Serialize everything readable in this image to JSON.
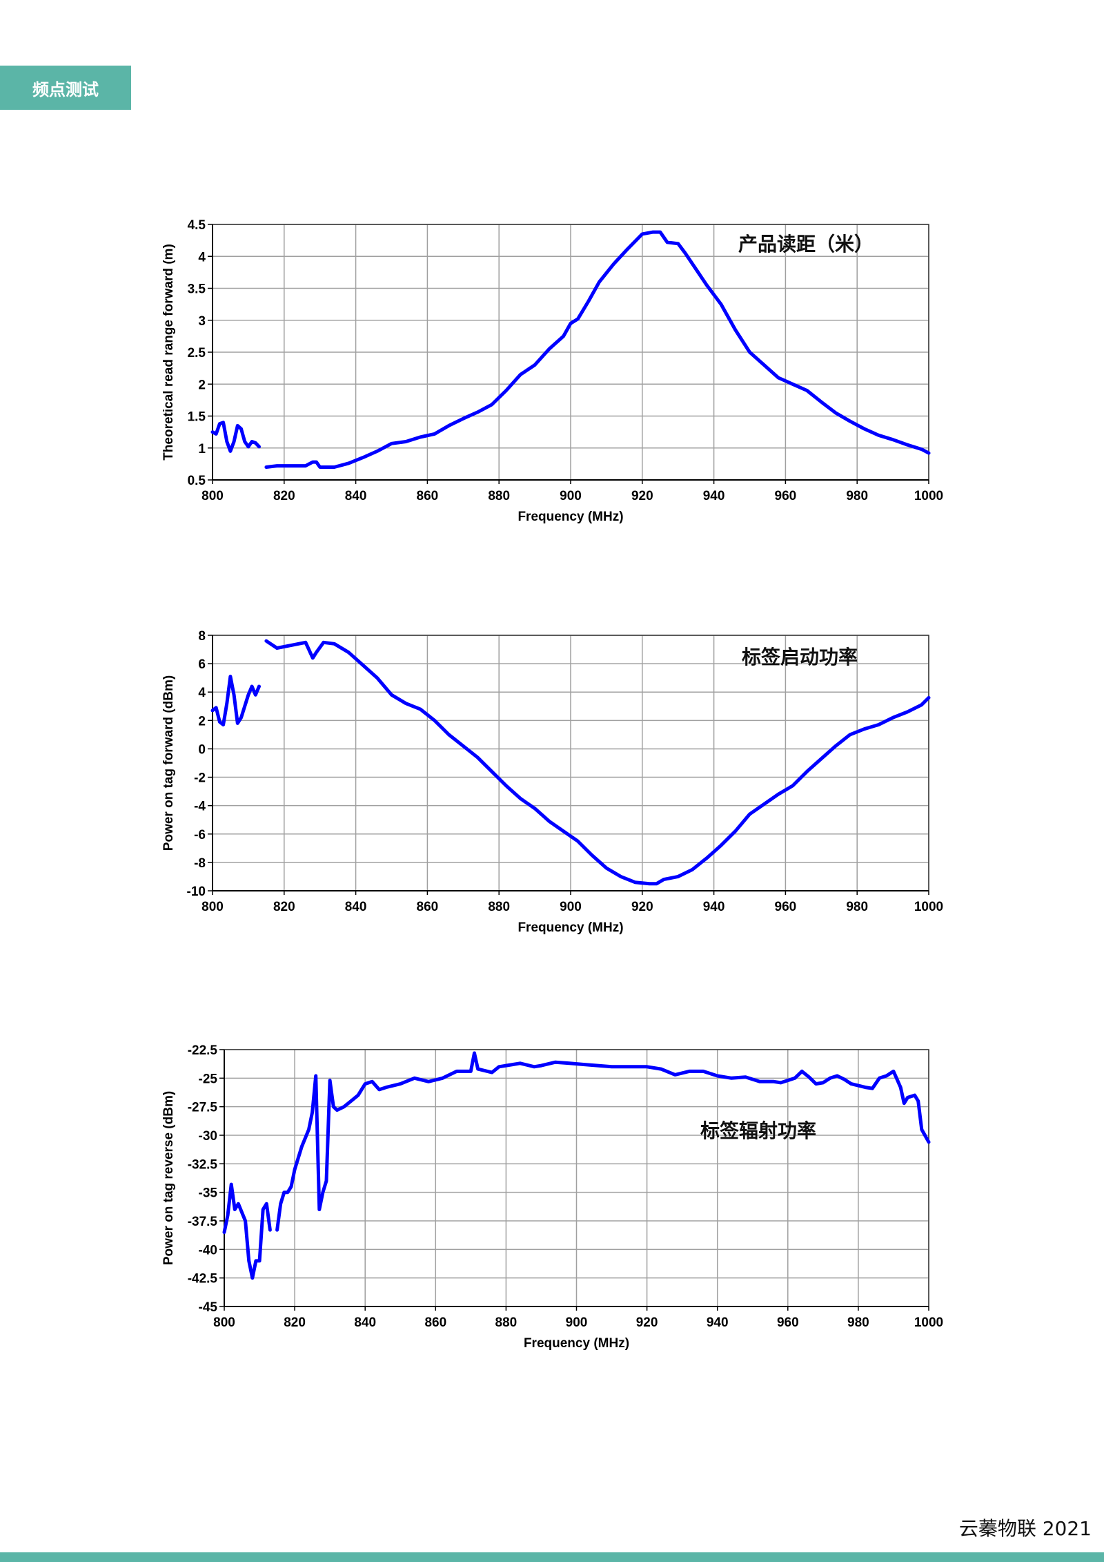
{
  "section_tag": "频点测试",
  "footer_text": "云蓁物联 2021",
  "colors": {
    "accent": "#5bb5a7",
    "series": "#0000ff",
    "grid": "#a0a0a0"
  },
  "chart_data": [
    {
      "type": "line",
      "annotation": "产品读距（米）",
      "xlabel": "Frequency (MHz)",
      "ylabel": "Theoretical read range forward (m)",
      "xlim": [
        800,
        1000
      ],
      "ylim": [
        0.5,
        4.5
      ],
      "xticks": [
        "800",
        "820",
        "840",
        "860",
        "880",
        "900",
        "920",
        "940",
        "960",
        "980",
        "1000"
      ],
      "yticks": [
        "0.5",
        "1",
        "1.5",
        "2",
        "2.5",
        "3",
        "3.5",
        "4",
        "4.5"
      ],
      "grid": true,
      "series": [
        {
          "points": [
            [
              800,
              1.25
            ],
            [
              801,
              1.22
            ],
            [
              802,
              1.38
            ],
            [
              803,
              1.4
            ],
            [
              804,
              1.1
            ],
            [
              805,
              0.95
            ],
            [
              806,
              1.1
            ],
            [
              807,
              1.35
            ],
            [
              808,
              1.3
            ],
            [
              809,
              1.1
            ],
            [
              810,
              1.02
            ],
            [
              811,
              1.1
            ],
            [
              812,
              1.08
            ],
            [
              813,
              1.02
            ]
          ]
        },
        {
          "points": [
            [
              815,
              0.7
            ],
            [
              818,
              0.72
            ],
            [
              822,
              0.72
            ],
            [
              826,
              0.72
            ],
            [
              828,
              0.78
            ],
            [
              829,
              0.78
            ],
            [
              830,
              0.7
            ],
            [
              834,
              0.7
            ],
            [
              838,
              0.76
            ],
            [
              842,
              0.85
            ],
            [
              846,
              0.95
            ],
            [
              850,
              1.07
            ],
            [
              854,
              1.1
            ],
            [
              858,
              1.17
            ],
            [
              862,
              1.22
            ],
            [
              866,
              1.35
            ],
            [
              870,
              1.46
            ],
            [
              874,
              1.56
            ],
            [
              878,
              1.68
            ],
            [
              882,
              1.9
            ],
            [
              886,
              2.15
            ],
            [
              890,
              2.3
            ],
            [
              894,
              2.55
            ],
            [
              898,
              2.75
            ],
            [
              900,
              2.95
            ],
            [
              902,
              3.02
            ],
            [
              905,
              3.3
            ],
            [
              908,
              3.6
            ],
            [
              912,
              3.88
            ],
            [
              916,
              4.12
            ],
            [
              920,
              4.35
            ],
            [
              923,
              4.38
            ],
            [
              925,
              4.38
            ],
            [
              927,
              4.22
            ],
            [
              930,
              4.2
            ],
            [
              932,
              4.05
            ],
            [
              935,
              3.8
            ],
            [
              938,
              3.55
            ],
            [
              942,
              3.25
            ],
            [
              946,
              2.85
            ],
            [
              950,
              2.5
            ],
            [
              954,
              2.3
            ],
            [
              958,
              2.1
            ],
            [
              962,
              2.0
            ],
            [
              966,
              1.9
            ],
            [
              970,
              1.72
            ],
            [
              974,
              1.55
            ],
            [
              978,
              1.42
            ],
            [
              982,
              1.3
            ],
            [
              986,
              1.2
            ],
            [
              990,
              1.13
            ],
            [
              994,
              1.05
            ],
            [
              998,
              0.98
            ],
            [
              1000,
              0.92
            ]
          ]
        }
      ]
    },
    {
      "type": "line",
      "annotation": "标签启动功率",
      "xlabel": "Frequency (MHz)",
      "ylabel": "Power on tag forward (dBm)",
      "xlim": [
        800,
        1000
      ],
      "ylim": [
        -10,
        8
      ],
      "xticks": [
        "800",
        "820",
        "840",
        "860",
        "880",
        "900",
        "920",
        "940",
        "960",
        "980",
        "1000"
      ],
      "yticks": [
        "-10",
        "-8",
        "-6",
        "-4",
        "-2",
        "0",
        "2",
        "4",
        "6",
        "8"
      ],
      "grid": true,
      "series": [
        {
          "points": [
            [
              800,
              2.7
            ],
            [
              801,
              2.9
            ],
            [
              802,
              1.9
            ],
            [
              803,
              1.7
            ],
            [
              804,
              3.2
            ],
            [
              805,
              5.1
            ],
            [
              806,
              3.8
            ],
            [
              807,
              1.8
            ],
            [
              808,
              2.2
            ],
            [
              809,
              3.0
            ],
            [
              810,
              3.8
            ],
            [
              811,
              4.4
            ],
            [
              812,
              3.8
            ],
            [
              813,
              4.4
            ]
          ]
        },
        {
          "points": [
            [
              815,
              7.6
            ],
            [
              818,
              7.1
            ],
            [
              822,
              7.3
            ],
            [
              826,
              7.5
            ],
            [
              828,
              6.4
            ],
            [
              829,
              6.8
            ],
            [
              831,
              7.5
            ],
            [
              834,
              7.4
            ],
            [
              838,
              6.8
            ],
            [
              842,
              5.9
            ],
            [
              846,
              5.0
            ],
            [
              850,
              3.8
            ],
            [
              854,
              3.2
            ],
            [
              858,
              2.8
            ],
            [
              862,
              2.0
            ],
            [
              866,
              1.0
            ],
            [
              870,
              0.2
            ],
            [
              874,
              -0.6
            ],
            [
              878,
              -1.6
            ],
            [
              882,
              -2.6
            ],
            [
              886,
              -3.5
            ],
            [
              890,
              -4.2
            ],
            [
              894,
              -5.1
            ],
            [
              898,
              -5.8
            ],
            [
              902,
              -6.5
            ],
            [
              906,
              -7.5
            ],
            [
              910,
              -8.4
            ],
            [
              914,
              -9.0
            ],
            [
              918,
              -9.4
            ],
            [
              922,
              -9.5
            ],
            [
              924,
              -9.5
            ],
            [
              926,
              -9.2
            ],
            [
              930,
              -9.0
            ],
            [
              934,
              -8.5
            ],
            [
              938,
              -7.7
            ],
            [
              942,
              -6.8
            ],
            [
              946,
              -5.8
            ],
            [
              950,
              -4.6
            ],
            [
              954,
              -3.9
            ],
            [
              958,
              -3.2
            ],
            [
              962,
              -2.6
            ],
            [
              966,
              -1.6
            ],
            [
              970,
              -0.7
            ],
            [
              974,
              0.2
            ],
            [
              978,
              1.0
            ],
            [
              982,
              1.4
            ],
            [
              986,
              1.7
            ],
            [
              990,
              2.2
            ],
            [
              994,
              2.6
            ],
            [
              998,
              3.1
            ],
            [
              1000,
              3.6
            ]
          ]
        }
      ]
    },
    {
      "type": "line",
      "annotation": "标签辐射功率",
      "xlabel": "Frequency (MHz)",
      "ylabel": "Power on tag reverse (dBm)",
      "xlim": [
        800,
        1000
      ],
      "ylim": [
        -45,
        -22.5
      ],
      "xticks": [
        "800",
        "820",
        "840",
        "860",
        "880",
        "900",
        "920",
        "940",
        "960",
        "980",
        "1000"
      ],
      "yticks": [
        "-45",
        "-42.5",
        "-40",
        "-37.5",
        "-35",
        "-32.5",
        "-30",
        "-27.5",
        "-25",
        "-22.5"
      ],
      "grid": true,
      "series": [
        {
          "points": [
            [
              800,
              -38.5
            ],
            [
              801,
              -37
            ],
            [
              802,
              -34.3
            ],
            [
              803,
              -36.5
            ],
            [
              804,
              -36
            ],
            [
              806,
              -37.5
            ],
            [
              807,
              -41
            ],
            [
              808,
              -42.5
            ],
            [
              809,
              -41
            ],
            [
              810,
              -41
            ],
            [
              811,
              -36.5
            ],
            [
              812,
              -36
            ],
            [
              813,
              -38.3
            ]
          ]
        },
        {
          "points": [
            [
              815,
              -38.3
            ],
            [
              816,
              -36
            ],
            [
              817,
              -35
            ],
            [
              818,
              -35
            ],
            [
              819,
              -34.5
            ],
            [
              820,
              -33
            ],
            [
              822,
              -31
            ],
            [
              824,
              -29.5
            ],
            [
              825,
              -28
            ],
            [
              826,
              -24.8
            ],
            [
              827,
              -36.5
            ],
            [
              828,
              -35
            ],
            [
              829,
              -34
            ],
            [
              830,
              -25.2
            ],
            [
              831,
              -27.5
            ],
            [
              832,
              -27.8
            ],
            [
              834,
              -27.5
            ],
            [
              836,
              -27
            ],
            [
              838,
              -26.5
            ],
            [
              840,
              -25.5
            ],
            [
              842,
              -25.3
            ],
            [
              844,
              -26
            ],
            [
              846,
              -25.8
            ],
            [
              850,
              -25.5
            ],
            [
              854,
              -25
            ],
            [
              858,
              -25.3
            ],
            [
              862,
              -25
            ],
            [
              866,
              -24.4
            ],
            [
              870,
              -24.4
            ],
            [
              871,
              -22.8
            ],
            [
              872,
              -24.2
            ],
            [
              876,
              -24.5
            ],
            [
              878,
              -24
            ],
            [
              882,
              -23.8
            ],
            [
              884,
              -23.7
            ],
            [
              888,
              -24
            ],
            [
              890,
              -23.9
            ],
            [
              894,
              -23.6
            ],
            [
              898,
              -23.7
            ],
            [
              902,
              -23.8
            ],
            [
              906,
              -23.9
            ],
            [
              910,
              -24
            ],
            [
              914,
              -24
            ],
            [
              918,
              -24
            ],
            [
              920,
              -24
            ],
            [
              924,
              -24.2
            ],
            [
              928,
              -24.7
            ],
            [
              932,
              -24.4
            ],
            [
              936,
              -24.4
            ],
            [
              940,
              -24.8
            ],
            [
              944,
              -25
            ],
            [
              948,
              -24.9
            ],
            [
              952,
              -25.3
            ],
            [
              956,
              -25.3
            ],
            [
              958,
              -25.4
            ],
            [
              962,
              -25
            ],
            [
              964,
              -24.4
            ],
            [
              966,
              -24.9
            ],
            [
              968,
              -25.5
            ],
            [
              970,
              -25.4
            ],
            [
              972,
              -25
            ],
            [
              974,
              -24.8
            ],
            [
              976,
              -25.1
            ],
            [
              978,
              -25.5
            ],
            [
              982,
              -25.8
            ],
            [
              984,
              -25.9
            ],
            [
              986,
              -25
            ],
            [
              988,
              -24.8
            ],
            [
              990,
              -24.4
            ],
            [
              992,
              -25.8
            ],
            [
              993,
              -27.2
            ],
            [
              994,
              -26.7
            ],
            [
              996,
              -26.5
            ],
            [
              997,
              -27
            ],
            [
              998,
              -29.5
            ],
            [
              1000,
              -30.6
            ]
          ]
        }
      ]
    }
  ]
}
